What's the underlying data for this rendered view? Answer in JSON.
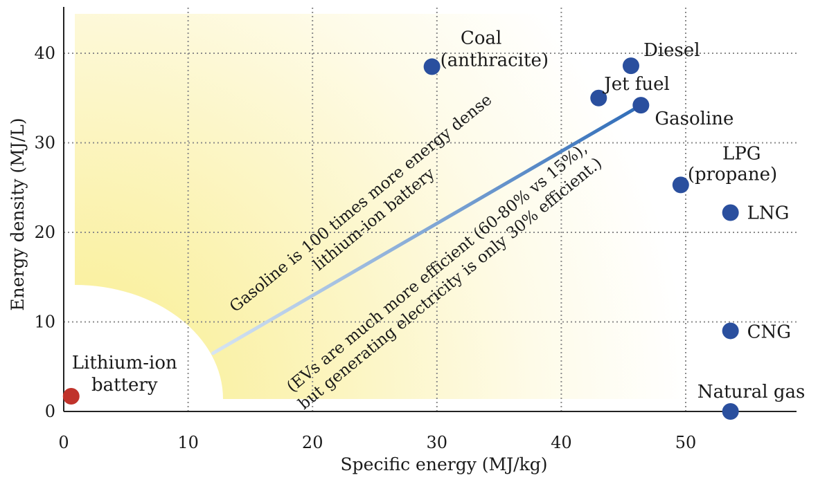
{
  "chart_data": {
    "type": "scatter",
    "xlabel": "Specific energy (MJ/kg)",
    "ylabel": "Energy density (MJ/L)",
    "xlim": [
      0,
      59
    ],
    "ylim": [
      0,
      45
    ],
    "x_ticks": [
      0,
      10,
      20,
      30,
      40,
      50
    ],
    "y_ticks": [
      0,
      10,
      20,
      30,
      40
    ],
    "grid": true,
    "grid_style": "dotted",
    "points": [
      {
        "label_lines": [
          "Coal",
          "(anthracite)"
        ],
        "x": 29.6,
        "y": 38.5,
        "color": "#2a4f9e"
      },
      {
        "label_lines": [
          "Diesel"
        ],
        "x": 45.6,
        "y": 38.6,
        "color": "#2a4f9e"
      },
      {
        "label_lines": [
          "Jet fuel"
        ],
        "x": 43.0,
        "y": 35.0,
        "color": "#2a4f9e"
      },
      {
        "label_lines": [
          "Gasoline"
        ],
        "x": 46.4,
        "y": 34.2,
        "color": "#2a4f9e"
      },
      {
        "label_lines": [
          "LPG",
          "(propane)"
        ],
        "x": 49.6,
        "y": 25.3,
        "color": "#2a4f9e"
      },
      {
        "label_lines": [
          "LNG"
        ],
        "x": 53.6,
        "y": 22.2,
        "color": "#2a4f9e"
      },
      {
        "label_lines": [
          "CNG"
        ],
        "x": 53.6,
        "y": 9.0,
        "color": "#2a4f9e"
      },
      {
        "label_lines": [
          "Natural gas"
        ],
        "x": 53.6,
        "y": 0.0,
        "color": "#2a4f9e"
      },
      {
        "label_lines": [
          "Lithium-ion",
          "battery"
        ],
        "x": 0.6,
        "y": 1.7,
        "color": "#c0332b"
      }
    ],
    "trend_line": {
      "from": [
        12.0,
        6.5
      ],
      "to": [
        46.4,
        34.2
      ],
      "color_start": "#d6e4f3",
      "color_end": "#2f6cb8"
    },
    "annotations": [
      {
        "lines": [
          "Gasoline is 100 times more energy dense",
          "lithium-ion battery"
        ]
      },
      {
        "lines": [
          "(EVs are much more efficient (60-80% vs 15%),",
          "but generating electricity is only 30% efficient.)"
        ]
      }
    ],
    "background_gradient": [
      "#fbf3a8",
      "#ffffff"
    ]
  }
}
